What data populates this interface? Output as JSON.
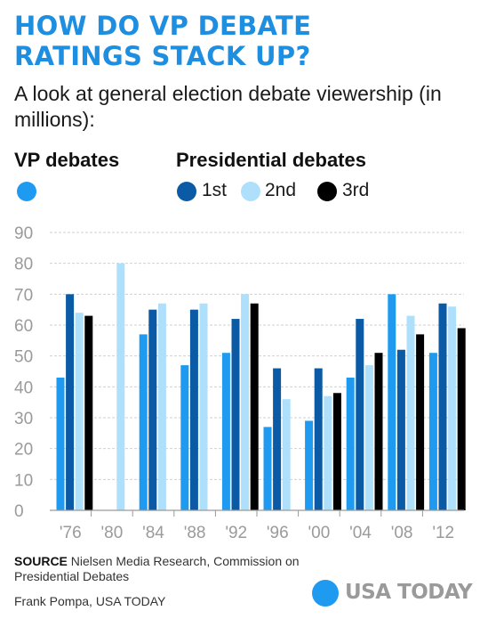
{
  "title_line1": "HOW DO VP DEBATE",
  "title_line2": "RATINGS STACK UP?",
  "subtitle": "A look at general election debate viewership (in millions):",
  "legend": {
    "vp_heading": "VP debates",
    "pres_heading": "Presidential debates",
    "first": "1st",
    "second": "2nd",
    "third": "3rd"
  },
  "colors": {
    "vp": "#1e9bf0",
    "first": "#0b5aa6",
    "second": "#aee0fb",
    "third": "#000000",
    "title": "#1e8fe0",
    "grid": "#d0d0d0",
    "axis_text": "#9a9a9a"
  },
  "chart_data": {
    "type": "bar",
    "categories": [
      "'76",
      "'80",
      "'84",
      "'88",
      "'92",
      "'96",
      "'00",
      "'04",
      "'08",
      "'12"
    ],
    "series": [
      {
        "name": "VP debates",
        "values": [
          43,
          null,
          57,
          47,
          51,
          27,
          29,
          43,
          70,
          51
        ]
      },
      {
        "name": "1st",
        "values": [
          70,
          null,
          65,
          65,
          62,
          46,
          46,
          62,
          52,
          67
        ]
      },
      {
        "name": "2nd",
        "values": [
          64,
          80,
          67,
          67,
          70,
          36,
          37,
          47,
          63,
          66
        ]
      },
      {
        "name": "3rd",
        "values": [
          63,
          null,
          null,
          null,
          67,
          null,
          38,
          51,
          57,
          59
        ]
      }
    ],
    "ylim": [
      0,
      90
    ],
    "yticks": [
      0,
      10,
      20,
      30,
      40,
      50,
      60,
      70,
      80,
      90
    ],
    "grid": true
  },
  "source_label": "SOURCE",
  "source_text": "Nielsen Media Research, Commission on Presidential Debates",
  "byline": "Frank Pompa, USA TODAY",
  "logo_text": "USA TODAY"
}
